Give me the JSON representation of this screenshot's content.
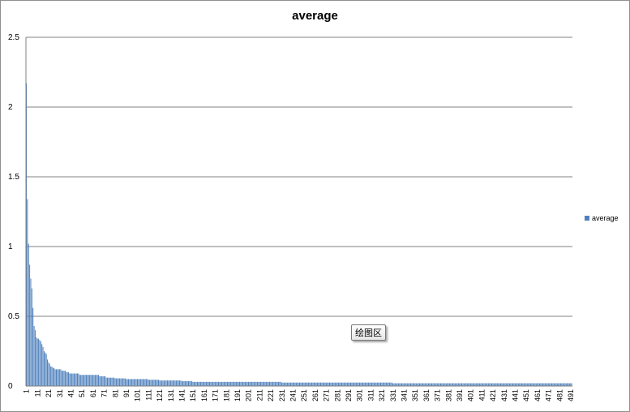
{
  "chart_data": {
    "type": "bar",
    "title": "average",
    "xlabel": "",
    "ylabel": "",
    "ylim": [
      0,
      2.5
    ],
    "yticks": [
      "0",
      "0.5",
      "1",
      "1.5",
      "2",
      "2.5"
    ],
    "x_start": 1,
    "x_end": 500,
    "x_tick_step": 10,
    "grid": true,
    "legend_position": "right",
    "series": [
      {
        "name": "average",
        "color": "#4f81bd",
        "values": [
          2.17,
          1.34,
          1.02,
          0.87,
          0.77,
          0.7,
          0.56,
          0.43,
          0.4,
          0.35,
          0.34,
          0.34,
          0.33,
          0.32,
          0.3,
          0.28,
          0.25,
          0.24,
          0.23,
          0.19,
          0.17,
          0.16,
          0.14,
          0.14,
          0.13,
          0.13,
          0.12,
          0.12,
          0.12,
          0.12,
          0.12,
          0.12,
          0.11,
          0.11,
          0.11,
          0.11,
          0.1,
          0.1,
          0.1,
          0.09,
          0.09,
          0.09,
          0.09,
          0.09,
          0.09,
          0.09,
          0.09,
          0.09,
          0.08,
          0.08,
          0.08,
          0.08,
          0.08,
          0.08,
          0.08,
          0.08,
          0.08,
          0.08,
          0.08,
          0.08,
          0.08,
          0.08,
          0.08,
          0.08,
          0.08,
          0.08,
          0.07,
          0.07,
          0.07,
          0.07,
          0.07,
          0.07,
          0.06,
          0.06,
          0.06,
          0.06,
          0.06,
          0.06,
          0.06,
          0.06,
          0.055,
          0.055,
          0.055,
          0.055,
          0.055,
          0.055,
          0.055,
          0.055,
          0.055,
          0.055,
          0.05,
          0.05,
          0.05,
          0.05,
          0.05,
          0.05,
          0.05,
          0.05,
          0.05,
          0.05,
          0.05,
          0.05,
          0.05,
          0.05,
          0.05,
          0.05,
          0.05,
          0.05,
          0.05,
          0.05,
          0.045,
          0.045,
          0.045,
          0.045,
          0.045,
          0.045,
          0.045,
          0.045,
          0.045,
          0.045,
          0.04,
          0.04,
          0.04,
          0.04,
          0.04,
          0.04,
          0.04,
          0.04,
          0.04,
          0.04,
          0.04,
          0.04,
          0.04,
          0.04,
          0.04,
          0.04,
          0.04,
          0.04,
          0.04,
          0.04,
          0.035,
          0.035,
          0.035,
          0.035,
          0.035,
          0.035,
          0.035,
          0.035,
          0.035,
          0.035,
          0.03,
          0.03,
          0.03,
          0.03,
          0.03,
          0.03,
          0.03,
          0.03,
          0.03,
          0.03,
          0.03,
          0.03,
          0.03,
          0.03,
          0.03,
          0.03,
          0.03,
          0.03,
          0.03,
          0.03,
          0.03,
          0.03,
          0.03,
          0.03,
          0.03,
          0.03,
          0.03,
          0.03,
          0.03,
          0.03,
          0.03,
          0.03,
          0.03,
          0.03,
          0.03,
          0.03,
          0.03,
          0.03,
          0.03,
          0.03,
          0.03,
          0.03,
          0.03,
          0.03,
          0.03,
          0.03,
          0.03,
          0.03,
          0.03,
          0.03,
          0.03,
          0.03,
          0.03,
          0.03,
          0.03,
          0.03,
          0.03,
          0.03,
          0.03,
          0.03,
          0.03,
          0.03,
          0.03,
          0.03,
          0.03,
          0.03,
          0.03,
          0.03,
          0.03,
          0.03,
          0.03,
          0.03,
          0.03,
          0.03,
          0.03,
          0.03,
          0.03,
          0.03,
          0.03,
          0.03,
          0.025,
          0.025,
          0.025,
          0.025,
          0.025,
          0.025,
          0.025,
          0.025,
          0.025,
          0.025,
          0.025,
          0.025,
          0.025,
          0.025,
          0.025,
          0.025,
          0.025,
          0.025,
          0.025,
          0.025,
          0.025,
          0.025,
          0.025,
          0.025,
          0.025,
          0.025,
          0.025,
          0.025,
          0.025,
          0.025,
          0.025,
          0.025,
          0.025,
          0.025,
          0.025,
          0.025,
          0.025,
          0.025,
          0.025,
          0.025,
          0.025,
          0.025,
          0.025,
          0.025,
          0.025,
          0.025,
          0.025,
          0.025,
          0.025,
          0.025,
          0.025,
          0.025,
          0.025,
          0.025,
          0.025,
          0.025,
          0.025,
          0.025,
          0.025,
          0.025,
          0.025,
          0.025,
          0.025,
          0.025,
          0.025,
          0.025,
          0.025,
          0.025,
          0.025,
          0.025,
          0.025,
          0.025,
          0.025,
          0.025,
          0.025,
          0.025,
          0.025,
          0.025,
          0.025,
          0.025,
          0.025,
          0.025,
          0.025,
          0.025,
          0.025,
          0.025,
          0.025,
          0.025,
          0.025,
          0.025,
          0.025,
          0.025,
          0.025,
          0.025,
          0.025,
          0.025,
          0.025,
          0.025,
          0.025,
          0.025,
          0.02,
          0.02,
          0.02,
          0.02,
          0.02,
          0.02,
          0.02,
          0.02,
          0.02,
          0.02,
          0.02,
          0.02,
          0.02,
          0.02,
          0.02,
          0.02,
          0.02,
          0.02,
          0.02,
          0.02,
          0.02,
          0.02,
          0.02,
          0.02,
          0.02,
          0.02,
          0.02,
          0.02,
          0.02,
          0.02,
          0.02,
          0.02,
          0.02,
          0.02,
          0.02,
          0.02,
          0.02,
          0.02,
          0.02,
          0.02,
          0.02,
          0.02,
          0.02,
          0.02,
          0.02,
          0.02,
          0.02,
          0.02,
          0.02,
          0.02,
          0.02,
          0.02,
          0.02,
          0.02,
          0.02,
          0.02,
          0.02,
          0.02,
          0.02,
          0.02,
          0.02,
          0.02,
          0.02,
          0.02,
          0.02,
          0.02,
          0.02,
          0.02,
          0.02,
          0.02,
          0.02,
          0.02,
          0.02,
          0.02,
          0.02,
          0.02,
          0.02,
          0.02,
          0.02,
          0.02,
          0.02,
          0.02,
          0.02,
          0.02,
          0.02,
          0.02,
          0.02,
          0.02,
          0.02,
          0.02,
          0.02,
          0.02,
          0.02,
          0.02,
          0.02,
          0.02,
          0.02,
          0.02,
          0.02,
          0.02,
          0.02,
          0.02,
          0.02,
          0.02,
          0.02,
          0.02,
          0.02,
          0.02,
          0.02,
          0.02,
          0.02,
          0.02,
          0.02,
          0.02,
          0.02,
          0.02,
          0.02,
          0.02,
          0.02,
          0.02,
          0.02,
          0.02,
          0.02,
          0.02,
          0.02,
          0.02,
          0.02,
          0.02,
          0.02,
          0.02,
          0.02,
          0.02,
          0.02,
          0.02,
          0.02,
          0.02,
          0.02,
          0.02,
          0.02,
          0.02,
          0.02,
          0.02,
          0.02,
          0.02,
          0.02,
          0.02,
          0.02,
          0.02,
          0.02,
          0.02,
          0.02,
          0.02,
          0.02,
          0.02,
          0.02,
          0.02,
          0.02,
          0.02,
          0.02,
          0.02,
          0.02,
          0.02
        ]
      }
    ]
  },
  "tooltip": {
    "text": "绘图区"
  }
}
